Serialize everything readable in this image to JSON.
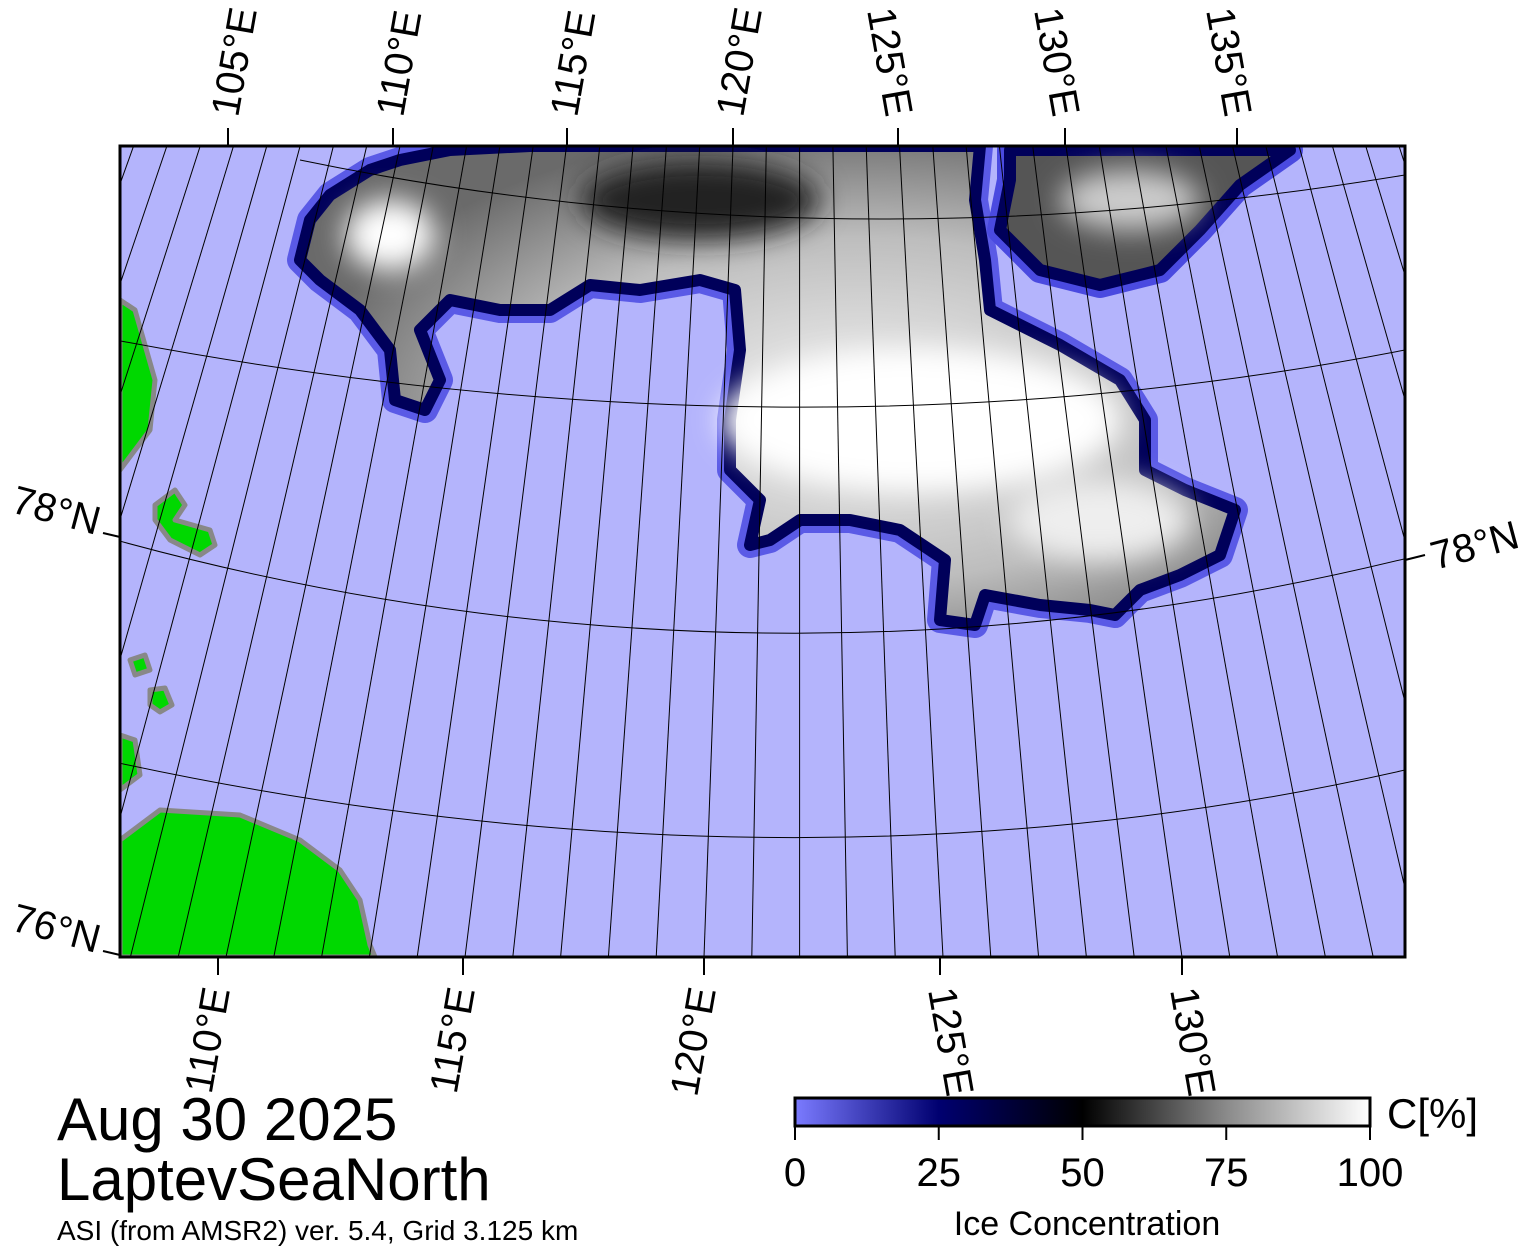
{
  "map": {
    "region": "LaptevSeaNorth",
    "date": "Aug 30 2025",
    "source_note": "ASI (from AMSR2) ver. 5.4,  Grid 3.125 km",
    "top_lon_labels": [
      "105°E",
      "110°E",
      "115°E",
      "120°E",
      "125°E",
      "130°E",
      "135°E"
    ],
    "bottom_lon_labels": [
      "110°E",
      "115°E",
      "120°E",
      "125°E",
      "130°E"
    ],
    "left_lat_labels": [
      "78°N",
      "76°N"
    ],
    "right_lat_labels": [
      "78°N"
    ]
  },
  "colorbar": {
    "title": "Ice Concentration",
    "unit_label": "C[%]",
    "lim": [
      0,
      100
    ],
    "ticks": [
      0,
      25,
      50,
      75,
      100
    ]
  }
}
